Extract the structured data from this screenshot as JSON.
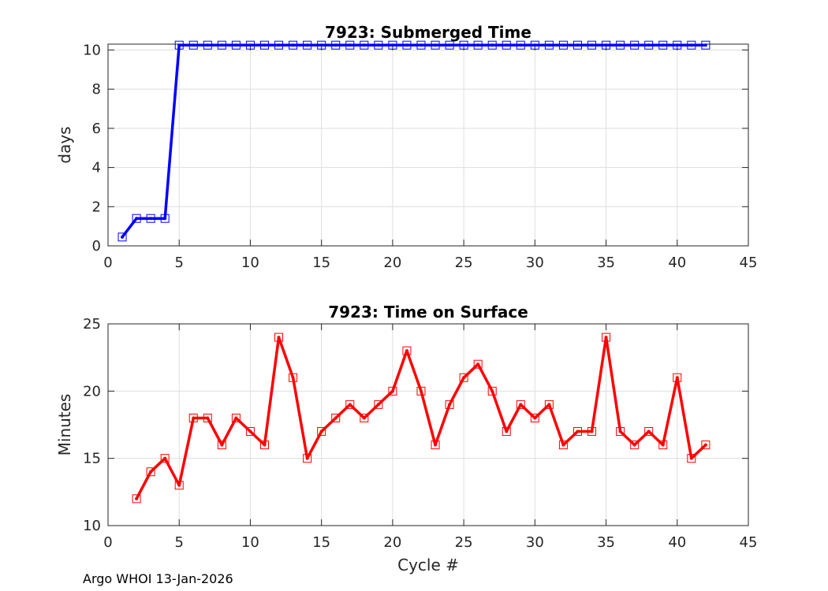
{
  "footer": "Argo WHOI 13-Jan-2026",
  "chart_data": [
    {
      "type": "line",
      "title": "7923: Submerged Time",
      "xlabel": "",
      "ylabel": "days",
      "xlim": [
        0,
        45
      ],
      "ylim": [
        0,
        10.3
      ],
      "xticks": [
        0,
        5,
        10,
        15,
        20,
        25,
        30,
        35,
        40,
        45
      ],
      "yticks": [
        0,
        2,
        4,
        6,
        8,
        10
      ],
      "grid": true,
      "series": [
        {
          "name": "Submerged Time",
          "color": "#0000ff",
          "marker": "square",
          "x": [
            1,
            2,
            3,
            4,
            5,
            6,
            7,
            8,
            9,
            10,
            11,
            12,
            13,
            14,
            15,
            16,
            17,
            18,
            19,
            20,
            21,
            22,
            23,
            24,
            25,
            26,
            27,
            28,
            29,
            30,
            31,
            32,
            33,
            34,
            35,
            36,
            37,
            38,
            39,
            40,
            41,
            42
          ],
          "values": [
            0.45,
            1.4,
            1.4,
            1.4,
            10.25,
            10.25,
            10.25,
            10.25,
            10.25,
            10.25,
            10.25,
            10.25,
            10.25,
            10.25,
            10.25,
            10.25,
            10.25,
            10.25,
            10.25,
            10.25,
            10.25,
            10.25,
            10.25,
            10.25,
            10.25,
            10.25,
            10.25,
            10.25,
            10.25,
            10.25,
            10.25,
            10.25,
            10.25,
            10.25,
            10.25,
            10.25,
            10.25,
            10.25,
            10.25,
            10.25,
            10.25,
            10.25
          ]
        }
      ]
    },
    {
      "type": "line",
      "title": "7923: Time on Surface",
      "xlabel": "Cycle #",
      "ylabel": "Minutes",
      "xlim": [
        0,
        45
      ],
      "ylim": [
        10,
        25
      ],
      "xticks": [
        0,
        5,
        10,
        15,
        20,
        25,
        30,
        35,
        40,
        45
      ],
      "yticks": [
        10,
        15,
        20,
        25
      ],
      "grid": true,
      "series": [
        {
          "name": "Time on Surface",
          "color": "#ff0000",
          "marker": "square",
          "x": [
            2,
            3,
            4,
            5,
            6,
            7,
            8,
            9,
            10,
            11,
            12,
            13,
            14,
            15,
            16,
            17,
            18,
            19,
            20,
            21,
            22,
            23,
            24,
            25,
            26,
            27,
            28,
            29,
            30,
            31,
            32,
            33,
            34,
            35,
            36,
            37,
            38,
            39,
            40,
            41,
            42
          ],
          "values": [
            12,
            14,
            15,
            13,
            18,
            18,
            16,
            18,
            17,
            16,
            24,
            21,
            15,
            17,
            18,
            19,
            18,
            19,
            20,
            23,
            20,
            16,
            19,
            21,
            22,
            20,
            17,
            19,
            18,
            19,
            16,
            17,
            17,
            24,
            17,
            16,
            17,
            16,
            21,
            15,
            16
          ]
        }
      ]
    }
  ]
}
